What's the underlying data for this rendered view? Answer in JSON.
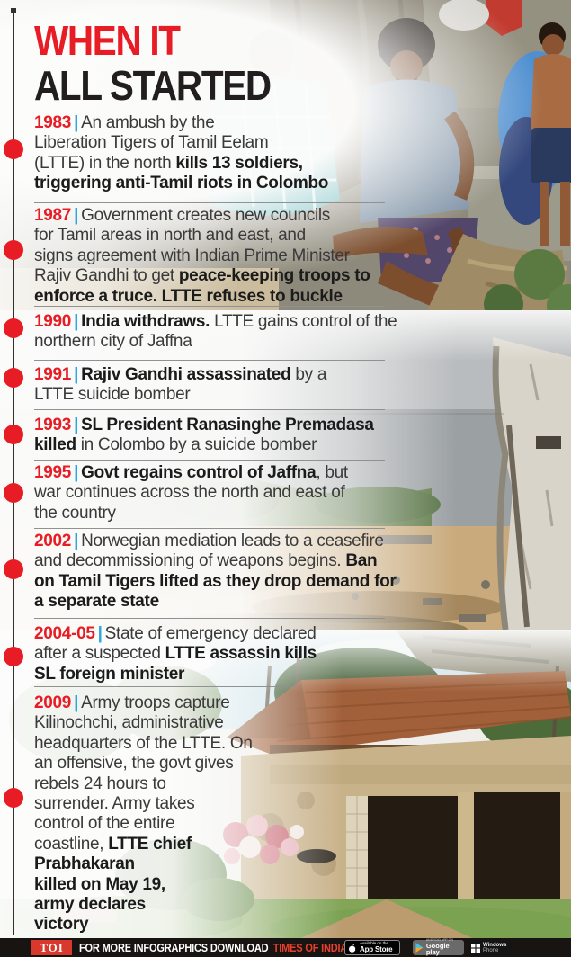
{
  "title": {
    "line1": "WHEN IT",
    "line2": "ALL STARTED"
  },
  "timeline": {
    "pipe": "|",
    "entries": [
      {
        "year": "1983",
        "lines": [
          [
            {
              "t": "An ambush by the"
            }
          ],
          [
            {
              "t": "Liberation Tigers of Tamil Eelam"
            }
          ],
          [
            {
              "t": "(LTTE) in the north "
            },
            {
              "t": "kills 13 soldiers,",
              "b": true
            }
          ],
          [
            {
              "t": "triggering anti-Tamil riots in Colombo",
              "b": true
            }
          ]
        ]
      },
      {
        "year": "1987",
        "lines": [
          [
            {
              "t": "Government creates new councils"
            }
          ],
          [
            {
              "t": "for Tamil areas in north and east, and"
            }
          ],
          [
            {
              "t": "signs agreement with Indian Prime Minister"
            }
          ],
          [
            {
              "t": "Rajiv Gandhi to get "
            },
            {
              "t": "peace-keeping troops to",
              "b": true
            }
          ],
          [
            {
              "t": "enforce a truce. LTTE refuses to buckle",
              "b": true
            }
          ]
        ]
      },
      {
        "year": "1990",
        "lines": [
          [
            {
              "t": "India withdraws.",
              "b": true
            },
            {
              "t": " LTTE gains control of the"
            }
          ],
          [
            {
              "t": "northern city of Jaffna"
            }
          ]
        ]
      },
      {
        "year": "1991",
        "lines": [
          [
            {
              "t": "Rajiv Gandhi assassinated",
              "b": true
            },
            {
              "t": " by a"
            }
          ],
          [
            {
              "t": "LTTE suicide bomber"
            }
          ]
        ]
      },
      {
        "year": "1993",
        "lines": [
          [
            {
              "t": "SL President Ranasinghe Premadasa",
              "b": true
            }
          ],
          [
            {
              "t": "killed",
              "b": true
            },
            {
              "t": " in Colombo by a suicide bomber"
            }
          ]
        ]
      },
      {
        "year": "1995",
        "lines": [
          [
            {
              "t": "Govt regains control of Jaffna",
              "b": true
            },
            {
              "t": ", but"
            }
          ],
          [
            {
              "t": "war continues across the north and east of"
            }
          ],
          [
            {
              "t": "the country"
            }
          ]
        ]
      },
      {
        "year": "2002",
        "lines": [
          [
            {
              "t": "Norwegian mediation leads to a ceasefire"
            }
          ],
          [
            {
              "t": "and decommissioning of weapons begins. "
            },
            {
              "t": "Ban",
              "b": true
            }
          ],
          [
            {
              "t": "on Tamil Tigers lifted as they drop demand for",
              "b": true
            }
          ],
          [
            {
              "t": "a separate state",
              "b": true
            }
          ]
        ]
      },
      {
        "year": "2004-05",
        "lines": [
          [
            {
              "t": "State of emergency declared"
            }
          ],
          [
            {
              "t": "after a suspected "
            },
            {
              "t": "LTTE assassin kills",
              "b": true
            }
          ],
          [
            {
              "t": "SL foreign minister",
              "b": true
            }
          ]
        ]
      },
      {
        "year": "2009",
        "lines": [
          [
            {
              "t": "Army troops capture"
            }
          ],
          [
            {
              "t": "Kilinochchi, administrative"
            }
          ],
          [
            {
              "t": "headquarters of the LTTE. On"
            }
          ],
          [
            {
              "t": "an offensive, the govt gives"
            }
          ],
          [
            {
              "t": "rebels 24 hours to"
            }
          ],
          [
            {
              "t": "surrender. Army takes"
            }
          ],
          [
            {
              "t": "control of the entire"
            }
          ],
          [
            {
              "t": "coastline, "
            },
            {
              "t": "LTTE chief",
              "b": true
            }
          ],
          [
            {
              "t": "Prabhakaran",
              "b": true
            }
          ],
          [
            {
              "t": "killed on May 19,",
              "b": true
            }
          ],
          [
            {
              "t": "army declares",
              "b": true
            }
          ],
          [
            {
              "t": "victory",
              "b": true
            }
          ]
        ]
      }
    ]
  },
  "footer": {
    "logo": "TOI",
    "text_white": "FOR MORE  INFOGRAPHICS DOWNLOAD",
    "text_red": "TIMES OF INDIA  APP",
    "badges": {
      "app_store": {
        "line1": "Available on the",
        "line2": "App Store"
      },
      "google_play": {
        "line1": "ANDROID APP ON",
        "line2": "Google play"
      },
      "windows": {
        "line1": "Windows",
        "line2": "Phone"
      }
    }
  },
  "colors": {
    "accent_red": "#e81c24",
    "pipe_blue": "#29a8e0",
    "title_black": "#221e1f",
    "body_text": "#3a3a3a",
    "separator_gray": "#919191",
    "footer_bg": "#171411",
    "toi_box_red": "#d9382c"
  }
}
